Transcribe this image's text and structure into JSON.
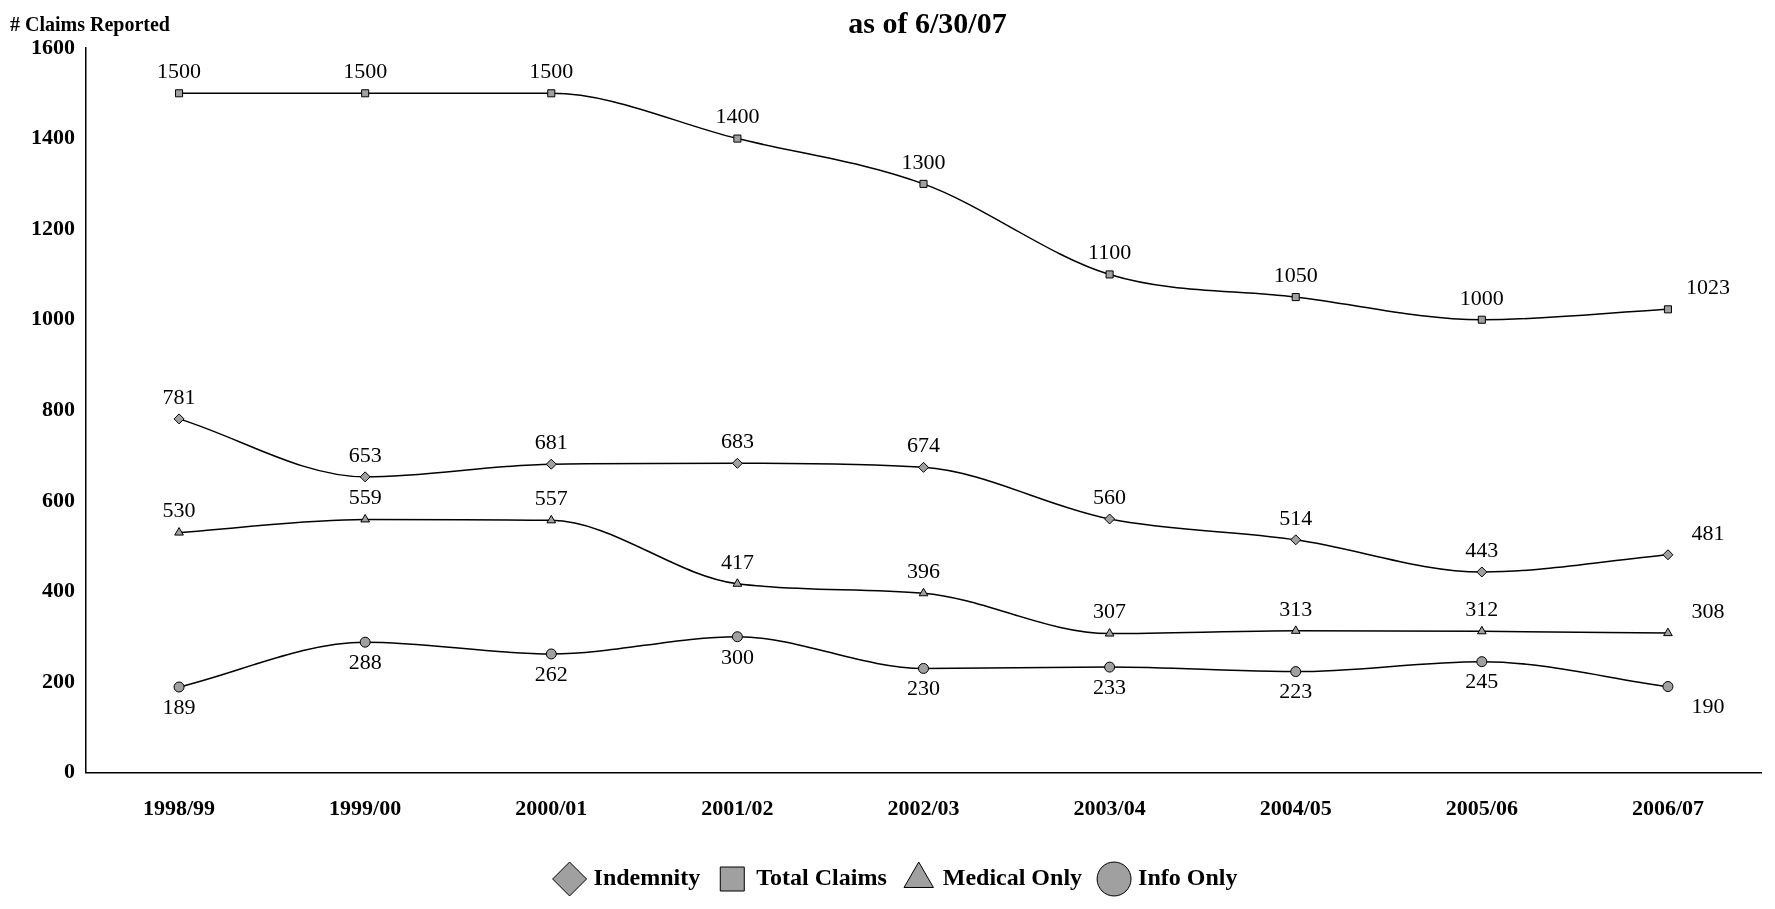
{
  "chart_data": {
    "type": "line",
    "title": "as of 6/30/07",
    "ylabel": "# Claims Reported",
    "categories": [
      "1998/99",
      "1999/00",
      "2000/01",
      "2001/02",
      "2002/03",
      "2003/04",
      "2004/05",
      "2005/06",
      "2006/07"
    ],
    "series": [
      {
        "name": "Indemnity",
        "color": "#000000",
        "marker": "diamond",
        "values": [
          781,
          653,
          681,
          683,
          674,
          560,
          514,
          443,
          481
        ]
      },
      {
        "name": "Total Claims",
        "color": "#000000",
        "marker": "square",
        "values": [
          1500,
          1500,
          1500,
          1400,
          1300,
          1100,
          1050,
          1000,
          1023
        ]
      },
      {
        "name": "Medical Only",
        "color": "#000000",
        "marker": "triangle",
        "values": [
          530,
          559,
          557,
          417,
          396,
          307,
          313,
          312,
          308
        ]
      },
      {
        "name": "Info Only",
        "color": "#000000",
        "marker": "circle",
        "values": [
          189,
          288,
          262,
          300,
          230,
          233,
          223,
          245,
          190
        ]
      }
    ],
    "ylim": [
      0,
      1600
    ],
    "yticks": [
      0,
      200,
      400,
      600,
      800,
      1000,
      1200,
      1400,
      1600
    ],
    "grid": false,
    "legend": "bottom",
    "data_labels": true
  }
}
